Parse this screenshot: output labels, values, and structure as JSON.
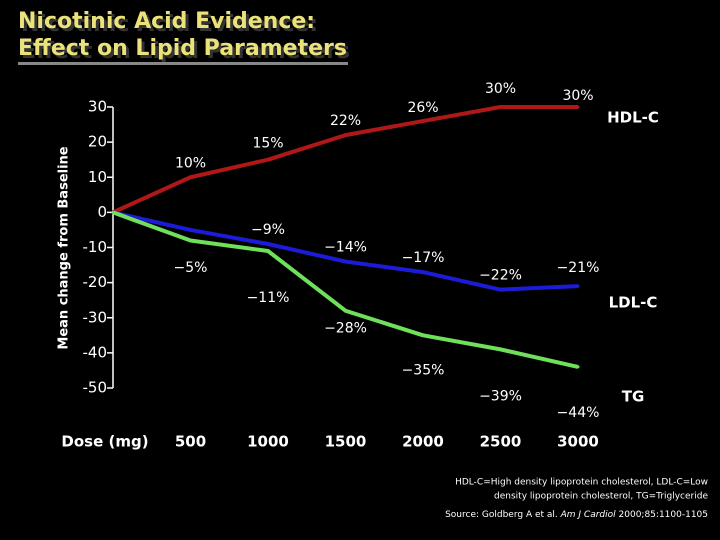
{
  "chart_data": {
    "type": "line",
    "title_lines": [
      "Nicotinic Acid Evidence:",
      "Effect on Lipid Parameters"
    ],
    "y_label": "Mean change from Baseline",
    "x_label": "Dose (mg)",
    "x": [
      0,
      500,
      1000,
      1500,
      2000,
      2500,
      3000
    ],
    "xlim": [
      0,
      3000
    ],
    "xticks": [
      500,
      1000,
      1500,
      2000,
      2500,
      3000
    ],
    "ylim": [
      -50,
      30
    ],
    "yticks": [
      30,
      20,
      10,
      0,
      -10,
      -20,
      -30,
      -40,
      -50
    ],
    "grid": false,
    "series": [
      {
        "name": "HDL-C",
        "color": "#b01818",
        "values": [
          0,
          10,
          15,
          22,
          26,
          30,
          30
        ],
        "value_labels": [
          null,
          "10%",
          "15%",
          "22%",
          "26%",
          "30%",
          "30%"
        ]
      },
      {
        "name": "LDL-C",
        "color": "#1c1cd8",
        "values": [
          0,
          -5,
          -9,
          -14,
          -17,
          -22,
          -21
        ],
        "value_labels": [
          null,
          "−5%",
          "−9%",
          "−14%",
          "−17%",
          "−22%",
          "−21%"
        ]
      },
      {
        "name": "TG",
        "color": "#6fe05a",
        "values": [
          0,
          -8,
          -11,
          -28,
          -35,
          -39,
          -44
        ],
        "value_labels": [
          null,
          null,
          "−11%",
          "−28%",
          "−35%",
          "−39%",
          "−44%"
        ]
      }
    ],
    "footnote_lines": [
      "HDL-C=High density lipoprotein cholesterol, LDL-C=Low",
      "density lipoprotein cholesterol, TG=Triglyceride"
    ],
    "source": {
      "prefix": "Source: Goldberg A et al. ",
      "journal": "Am J Cardiol",
      "suffix": " 2000;85:1100-1105"
    }
  }
}
